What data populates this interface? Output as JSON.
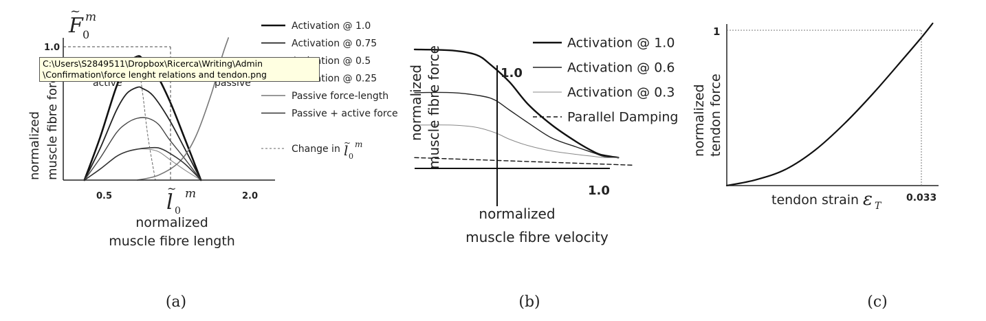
{
  "tooltip": {
    "line1": "C:\\Users\\S2849511\\Dropbox\\Ricerca\\Writing\\Admin",
    "line2": "\\Confirmation\\force lenght relations and tendon.png"
  },
  "panels": {
    "a": {
      "caption": "(a)",
      "ytitle_sym": "F",
      "ytitle_sub": "0",
      "ytitle_sup": "m",
      "ylabel1": "normalized",
      "ylabel2": "muscle fibre force",
      "ytick": "1.0",
      "xtick_left": "0.5",
      "xtick_right": "2.0",
      "xtick_mid_sym": "l",
      "xtick_mid_sub": "0",
      "xtick_mid_sup": "m",
      "xlabel1": "normalized",
      "xlabel2": "muscle fibre length",
      "region_left": "active",
      "region_right": "passive",
      "legend_change_text": "Change in",
      "legend_change_sym": "l",
      "legend_change_sub": "0",
      "legend_change_sup": "m"
    },
    "b": {
      "caption": "(b)",
      "ylabel1": "normalized",
      "ylabel2": "muscle fibre force",
      "ytick": "1.0",
      "xtick": "1.0",
      "xlabel1": "normalized",
      "xlabel2": "muscle fibre velocity"
    },
    "c": {
      "caption": "(c)",
      "ylabel1": "normalized",
      "ylabel2": "tendon force",
      "ytick": "1",
      "xtick": "0.033",
      "xlabel": "tendon strain",
      "xlabel_sym": "ε",
      "xlabel_sub": "T"
    }
  },
  "chart_data": [
    {
      "type": "line",
      "panel": "a",
      "xlim": [
        0.3,
        2.3
      ],
      "ylim": [
        0,
        1.15
      ],
      "grid": false,
      "series": [
        {
          "name": "Activation @ 1.0",
          "x": [
            0.5,
            0.65,
            0.8,
            0.9,
            1.0,
            1.05,
            1.15,
            1.3,
            1.45,
            1.6
          ],
          "y": [
            0,
            0.35,
            0.75,
            0.93,
            1.0,
            0.98,
            0.9,
            0.65,
            0.33,
            0
          ],
          "color": "#111111",
          "width": 2.6
        },
        {
          "name": "Activation @ 0.75",
          "x": [
            0.5,
            0.65,
            0.8,
            0.9,
            1.0,
            1.05,
            1.15,
            1.3,
            1.45,
            1.6
          ],
          "y": [
            0,
            0.26,
            0.56,
            0.7,
            0.75,
            0.74,
            0.68,
            0.49,
            0.25,
            0
          ],
          "color": "#222222",
          "width": 1.8
        },
        {
          "name": "Activation @ 0.5",
          "x": [
            0.5,
            0.65,
            0.8,
            0.9,
            1.0,
            1.1,
            1.2,
            1.3,
            1.45,
            1.6
          ],
          "y": [
            0,
            0.18,
            0.38,
            0.46,
            0.5,
            0.5,
            0.45,
            0.33,
            0.17,
            0
          ],
          "color": "#444444",
          "width": 1.4
        },
        {
          "name": "Activation @ 0.25",
          "x": [
            0.5,
            0.65,
            0.8,
            0.9,
            1.0,
            1.1,
            1.2,
            1.3,
            1.45,
            1.6
          ],
          "y": [
            0,
            0.09,
            0.19,
            0.23,
            0.25,
            0.25,
            0.23,
            0.17,
            0.08,
            0
          ],
          "color": "#888888",
          "width": 1.1
        },
        {
          "name": "Passive force-length",
          "x": [
            1.0,
            1.2,
            1.4,
            1.55,
            1.7,
            1.8,
            1.86
          ],
          "y": [
            0,
            0.04,
            0.15,
            0.35,
            0.7,
            1.0,
            1.15
          ],
          "color": "#777777",
          "width": 1.6
        },
        {
          "name": "Passive + active force",
          "x": [
            0.5,
            0.65,
            0.8,
            0.9,
            1.0,
            1.1,
            1.2,
            1.3,
            1.45,
            1.6
          ],
          "y": [
            0,
            0.09,
            0.19,
            0.23,
            0.25,
            0.26,
            0.26,
            0.22,
            0.13,
            0.0
          ],
          "color": "#333333",
          "width": 1.6
        },
        {
          "name": "Change in l0m",
          "x": [
            1.0,
            1.05,
            1.1,
            1.17
          ],
          "y": [
            1.0,
            0.7,
            0.35,
            0
          ],
          "color": "#666666",
          "width": 1.0,
          "dash": "3,3"
        }
      ]
    },
    {
      "type": "line",
      "panel": "b",
      "xlim": [
        -1.0,
        1.3
      ],
      "ylim": [
        -0.1,
        1.05
      ],
      "grid": false,
      "series": [
        {
          "name": "Activation @ 1.0",
          "x": [
            -1.0,
            -0.6,
            -0.35,
            -0.2,
            0.0,
            0.2,
            0.45,
            0.7,
            0.9,
            1.0,
            1.15
          ],
          "y": [
            1.0,
            0.99,
            0.95,
            0.86,
            0.7,
            0.49,
            0.3,
            0.15,
            0.05,
            0.02,
            0.0
          ],
          "color": "#111111",
          "width": 2.4
        },
        {
          "name": "Activation @ 0.6",
          "x": [
            -1.0,
            -0.6,
            -0.3,
            -0.15,
            0.0,
            0.2,
            0.45,
            0.7,
            0.9,
            1.0,
            1.15
          ],
          "y": [
            0.6,
            0.6,
            0.57,
            0.53,
            0.44,
            0.32,
            0.18,
            0.1,
            0.04,
            0.01,
            0.0
          ],
          "color": "#222222",
          "width": 1.4
        },
        {
          "name": "Activation @ 0.3",
          "x": [
            -1.0,
            -0.6,
            -0.35,
            -0.15,
            0.0,
            0.2,
            0.45,
            0.7,
            0.9,
            1.0,
            1.15
          ],
          "y": [
            0.3,
            0.3,
            0.28,
            0.23,
            0.17,
            0.11,
            0.06,
            0.03,
            0.01,
            0.0,
            0.0
          ],
          "color": "#888888",
          "width": 1.0
        },
        {
          "name": "Parallel Damping",
          "x": [
            -1.0,
            1.3
          ],
          "y": [
            0.0,
            -0.07
          ],
          "color": "#111111",
          "width": 1.4,
          "dash": "6,4"
        }
      ]
    },
    {
      "type": "line",
      "panel": "c",
      "xlim": [
        0,
        0.036
      ],
      "ylim": [
        0,
        1.1
      ],
      "grid": false,
      "series": [
        {
          "name": "",
          "x": [
            0,
            0.005,
            0.01,
            0.015,
            0.02,
            0.025,
            0.03,
            0.033,
            0.035
          ],
          "y": [
            0,
            0.04,
            0.11,
            0.24,
            0.42,
            0.63,
            0.86,
            1.0,
            1.1
          ],
          "color": "#111111",
          "width": 2.2
        }
      ]
    }
  ],
  "legends": {
    "a": [
      {
        "label": "Activation @ 1.0",
        "color": "#111111",
        "width": 2.6
      },
      {
        "label": "Activation @ 0.75",
        "color": "#222222",
        "width": 1.8
      },
      {
        "label": "Activation @ 0.5",
        "color": "#444444",
        "width": 1.4
      },
      {
        "label": "Activation @ 0.25",
        "color": "#888888",
        "width": 1.1
      },
      {
        "label": "Passive force-length",
        "color": "#777777",
        "width": 1.6
      },
      {
        "label": "Passive + active force",
        "color": "#333333",
        "width": 1.6
      }
    ],
    "b": [
      {
        "label": "Activation @ 1.0",
        "color": "#111111",
        "width": 2.4
      },
      {
        "label": "Activation @ 0.6",
        "color": "#222222",
        "width": 1.4
      },
      {
        "label": "Activation @ 0.3",
        "color": "#888888",
        "width": 1.0
      },
      {
        "label": "Parallel Damping",
        "color": "#111111",
        "width": 1.4,
        "dash": "6,4"
      }
    ]
  }
}
